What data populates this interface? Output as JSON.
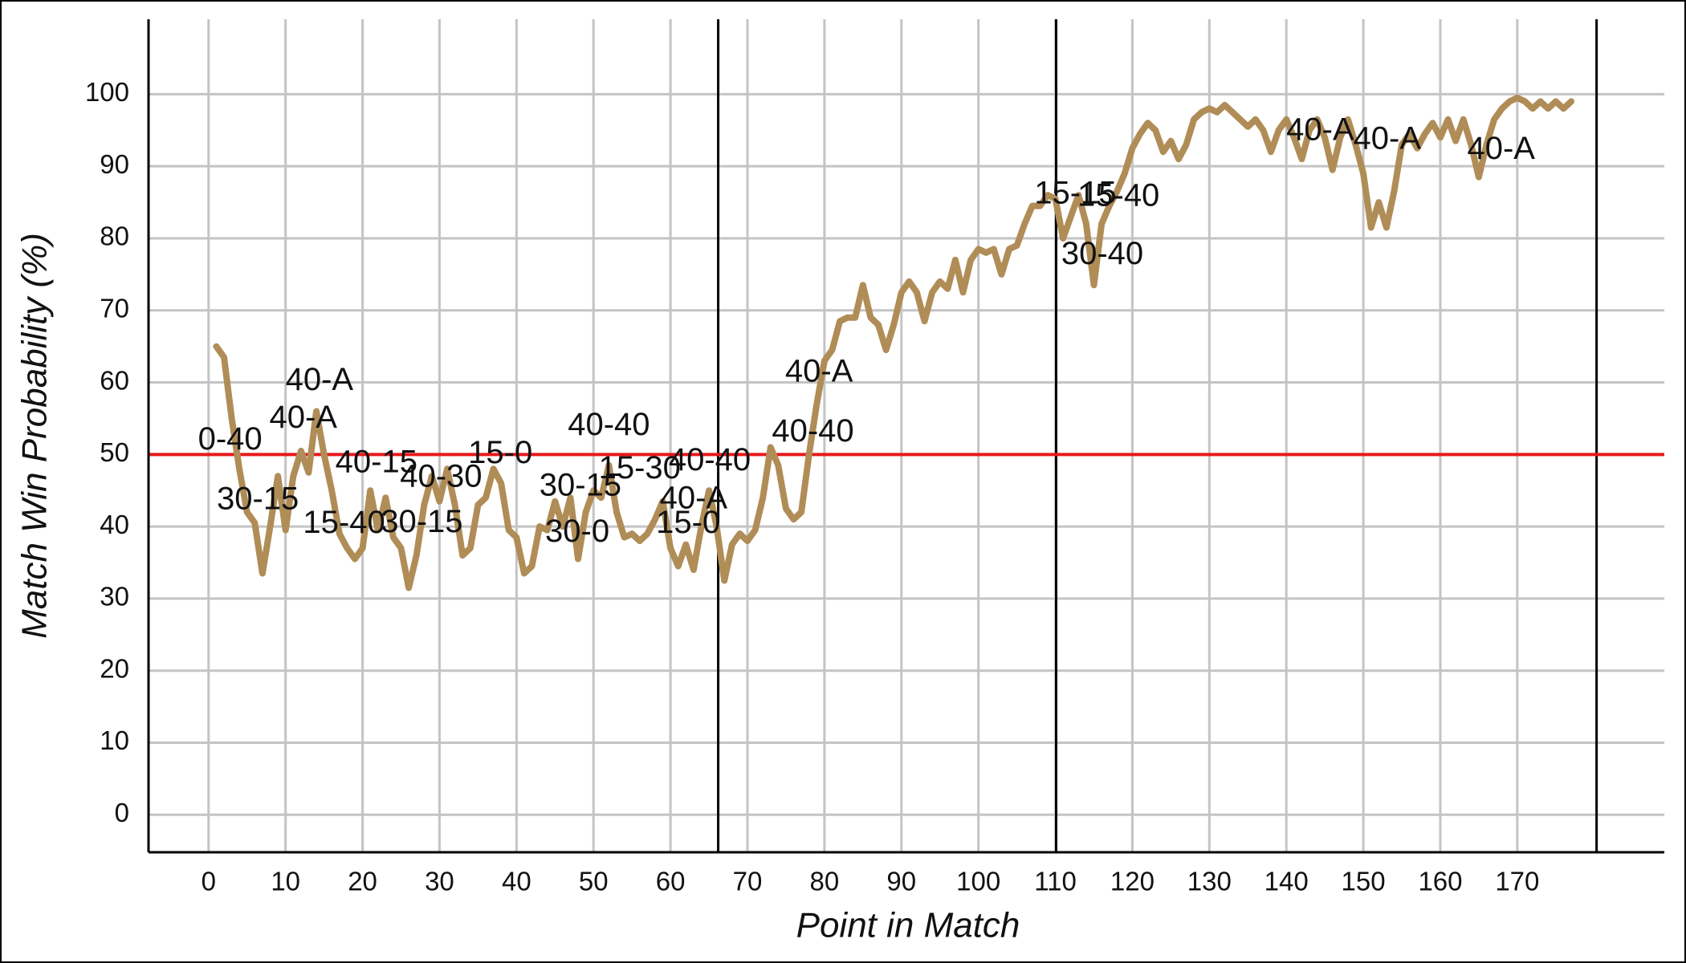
{
  "chart_data": {
    "type": "line",
    "x_label": "Point in Match",
    "y_label": "Match Win Probability (%)",
    "xlim": [
      -7.8,
      189.1
    ],
    "ylim": [
      -5.2,
      110.4
    ],
    "xticks": [
      0,
      10,
      20,
      30,
      40,
      50,
      60,
      70,
      80,
      90,
      100,
      110,
      120,
      130,
      140,
      150,
      160,
      170
    ],
    "yticks": [
      0,
      10,
      20,
      30,
      40,
      50,
      60,
      70,
      80,
      90,
      100
    ],
    "grid": true,
    "color": "#b08d57",
    "reference_line": 50,
    "reference_color": "#e8191b",
    "set_lines": [
      66.2,
      110.1,
      180.3
    ],
    "x": [
      1,
      2,
      3,
      4,
      5,
      6,
      7,
      8,
      9,
      10,
      11,
      12,
      13,
      14,
      15,
      16,
      17,
      18,
      19,
      20,
      21,
      22,
      23,
      24,
      25,
      26,
      27,
      28,
      29,
      30,
      31,
      32,
      33,
      34,
      35,
      36,
      37,
      38,
      39,
      40,
      41,
      42,
      43,
      44,
      45,
      46,
      47,
      48,
      49,
      50,
      51,
      52,
      53,
      54,
      55,
      56,
      57,
      58,
      59,
      60,
      61,
      62,
      63,
      64,
      65,
      66,
      67,
      68,
      69,
      70,
      71,
      72,
      73,
      74,
      75,
      76,
      77,
      78,
      79,
      80,
      81,
      82,
      83,
      84,
      85,
      86,
      87,
      88,
      89,
      90,
      91,
      92,
      93,
      94,
      95,
      96,
      97,
      98,
      99,
      100,
      101,
      102,
      103,
      104,
      105,
      106,
      107,
      108,
      109,
      110,
      111,
      112,
      113,
      114,
      115,
      116,
      117,
      118,
      119,
      120,
      121,
      122,
      123,
      124,
      125,
      126,
      127,
      128,
      129,
      130,
      131,
      132,
      133,
      134,
      135,
      136,
      137,
      138,
      139,
      140,
      141,
      142,
      143,
      144,
      145,
      146,
      147,
      148,
      149,
      150,
      151,
      152,
      153,
      154,
      155,
      156,
      157,
      158,
      159,
      160,
      161,
      162,
      163,
      164,
      165,
      166,
      167,
      168,
      169,
      170,
      171,
      172,
      173,
      174,
      175,
      176,
      177
    ],
    "values": [
      65,
      63.5,
      55,
      48,
      42,
      40.5,
      33.5,
      40,
      47,
      39.5,
      47,
      50.5,
      47.5,
      56,
      50,
      45,
      39,
      37,
      35.5,
      37,
      45,
      39.5,
      44,
      38.5,
      37,
      31.5,
      36,
      43,
      47,
      43.5,
      48,
      43,
      36,
      37,
      43,
      44,
      48,
      46,
      39.5,
      38.5,
      33.5,
      34.5,
      40,
      39.5,
      43.5,
      40,
      44,
      35.5,
      42,
      45,
      44,
      48.5,
      42,
      38.5,
      39,
      38,
      39,
      41,
      43.5,
      37,
      34.5,
      37.5,
      34,
      40,
      45,
      40,
      32.5,
      37.5,
      39,
      38,
      39.5,
      44,
      51,
      48.5,
      42.5,
      41,
      42,
      50,
      57,
      63,
      64.5,
      68.5,
      69,
      69,
      73.5,
      69,
      68,
      64.5,
      68,
      72.5,
      74,
      72.5,
      68.5,
      72.5,
      74,
      73,
      77,
      72.5,
      77,
      78.5,
      78,
      78.5,
      75,
      78.5,
      79,
      82,
      84.5,
      84.5,
      86,
      85.5,
      80,
      83,
      86,
      82,
      73.5,
      82,
      84.5,
      86.5,
      89,
      92.5,
      94.5,
      96,
      95,
      92,
      93.5,
      91,
      93,
      96.5,
      97.5,
      98,
      97.5,
      98.5,
      97.5,
      96.5,
      95.5,
      96.5,
      95,
      92,
      95,
      96.5,
      94,
      91,
      95,
      96.5,
      94,
      89.5,
      94,
      96.5,
      93,
      89,
      81.5,
      85,
      81.5,
      86.5,
      93,
      94.5,
      92.5,
      94.5,
      96,
      94,
      96.5,
      93.5,
      96.5,
      93,
      88.5,
      93,
      96.5,
      98,
      99,
      99.5,
      99,
      98,
      99,
      98,
      99,
      98,
      99
    ],
    "annotations": [
      {
        "text": "40-A",
        "x": 14.4,
        "y": 60.1
      },
      {
        "text": "40-A",
        "x": 12.3,
        "y": 54.9
      },
      {
        "text": "0-40",
        "x": 2.8,
        "y": 51.9
      },
      {
        "text": "30-15",
        "x": 6.4,
        "y": 43.6
      },
      {
        "text": "15-40",
        "x": 17.6,
        "y": 40.3
      },
      {
        "text": "30-15",
        "x": 27.7,
        "y": 40.4
      },
      {
        "text": "40-15",
        "x": 21.8,
        "y": 48.7
      },
      {
        "text": "40-30",
        "x": 30.2,
        "y": 46.7
      },
      {
        "text": "15-0",
        "x": 37.9,
        "y": 50
      },
      {
        "text": "40-40",
        "x": 52,
        "y": 53.9
      },
      {
        "text": "30-0",
        "x": 47.9,
        "y": 39.1
      },
      {
        "text": "30-15",
        "x": 48.3,
        "y": 45.5
      },
      {
        "text": "15-30",
        "x": 56,
        "y": 47.9
      },
      {
        "text": "40-40",
        "x": 65.1,
        "y": 49
      },
      {
        "text": "40-A",
        "x": 63,
        "y": 43.7
      },
      {
        "text": "15-0",
        "x": 62.3,
        "y": 40.3
      },
      {
        "text": "40-A",
        "x": 79.3,
        "y": 61.3
      },
      {
        "text": "40-40",
        "x": 78.5,
        "y": 53
      },
      {
        "text": "15-15",
        "x": 112.6,
        "y": 86
      },
      {
        "text": "15-40",
        "x": 118.2,
        "y": 85.7
      },
      {
        "text": "30-40",
        "x": 116.1,
        "y": 77.6
      },
      {
        "text": "40-A",
        "x": 144.4,
        "y": 94.8
      },
      {
        "text": "40-A",
        "x": 153.1,
        "y": 93.6
      },
      {
        "text": "40-A",
        "x": 167.9,
        "y": 92.2
      }
    ]
  }
}
